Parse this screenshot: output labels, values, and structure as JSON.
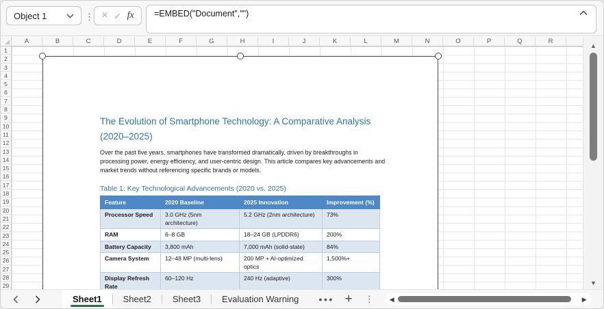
{
  "toolbar": {
    "name_box": "Object 1",
    "formula": "=EMBED(\"Document\",\"\")",
    "fx_label": "fx"
  },
  "grid": {
    "columns": [
      "A",
      "B",
      "C",
      "D",
      "E",
      "F",
      "G",
      "H",
      "I",
      "J",
      "K",
      "L",
      "M",
      "N",
      "O",
      "P",
      "Q",
      "R"
    ],
    "row_numbers": [
      1,
      2,
      3,
      4,
      5,
      6,
      7,
      8,
      9,
      10,
      11,
      12,
      13,
      14,
      15,
      16,
      17,
      18,
      19,
      20,
      21,
      22,
      23,
      24,
      25,
      26,
      27,
      28,
      29
    ]
  },
  "document": {
    "title_line1": "The Evolution of Smartphone Technology: A Comparative Analysis",
    "title_line2": "(2020–2025)",
    "paragraph": "Over the past five years, smartphones have transformed dramatically, driven by breakthroughs in processing power, energy efficiency, and user-centric design. This article compares key advancements and market trends without referencing specific brands or models.",
    "table_caption": "Table 1: Key Technological Advancements (2020 vs. 2025)",
    "table": {
      "headers": [
        "Feature",
        "2020 Baseline",
        "2025 Innovation",
        "Improvement (%)"
      ],
      "rows": [
        [
          "Processor Speed",
          "3.0 GHz (5nm architecture)",
          "5.2 GHz (2nm architecture)",
          "73%"
        ],
        [
          "RAM",
          "6–8 GB",
          "18–24 GB (LPDDR6)",
          "200%"
        ],
        [
          "Battery Capacity",
          "3,800 mAh",
          "7,000 mAh (solid-state)",
          "84%"
        ],
        [
          "Camera System",
          "12–48 MP (multi-lens)",
          "200 MP + AI-optimized optics",
          "1,500%+"
        ],
        [
          "Display Refresh Rate",
          "60–120 Hz",
          "240 Hz (adaptive)",
          "300%"
        ]
      ]
    }
  },
  "sheet_tabs": {
    "tabs": [
      {
        "label": "Sheet1",
        "active": true
      },
      {
        "label": "Sheet2",
        "active": false
      },
      {
        "label": "Sheet3",
        "active": false
      },
      {
        "label": "Evaluation Warning",
        "active": false
      }
    ]
  },
  "icons": {
    "name_box_chevron": "chevron-down-icon",
    "toolbar_kebab": "kebab-menu-icon",
    "cancel": "cancel-x-icon",
    "confirm": "checkmark-icon",
    "fx": "function-fx-icon",
    "collapse_formula": "chevron-up-icon",
    "tab_nav_left": "chevron-left-icon",
    "tab_nav_right": "chevron-right-icon",
    "more_sheets": "ellipsis-icon",
    "add_sheet": "plus-icon",
    "tab_kebab": "kebab-menu-icon",
    "scroll_up": "triangle-up-icon",
    "scroll_down": "triangle-down-icon",
    "scroll_left": "triangle-left-icon",
    "scroll_right": "triangle-right-icon"
  },
  "colors": {
    "title_blue": "#2E74B5",
    "table_header_blue": "#4E88C7",
    "banded_row_blue": "#DCE6F1",
    "active_tab_green": "#217346"
  }
}
